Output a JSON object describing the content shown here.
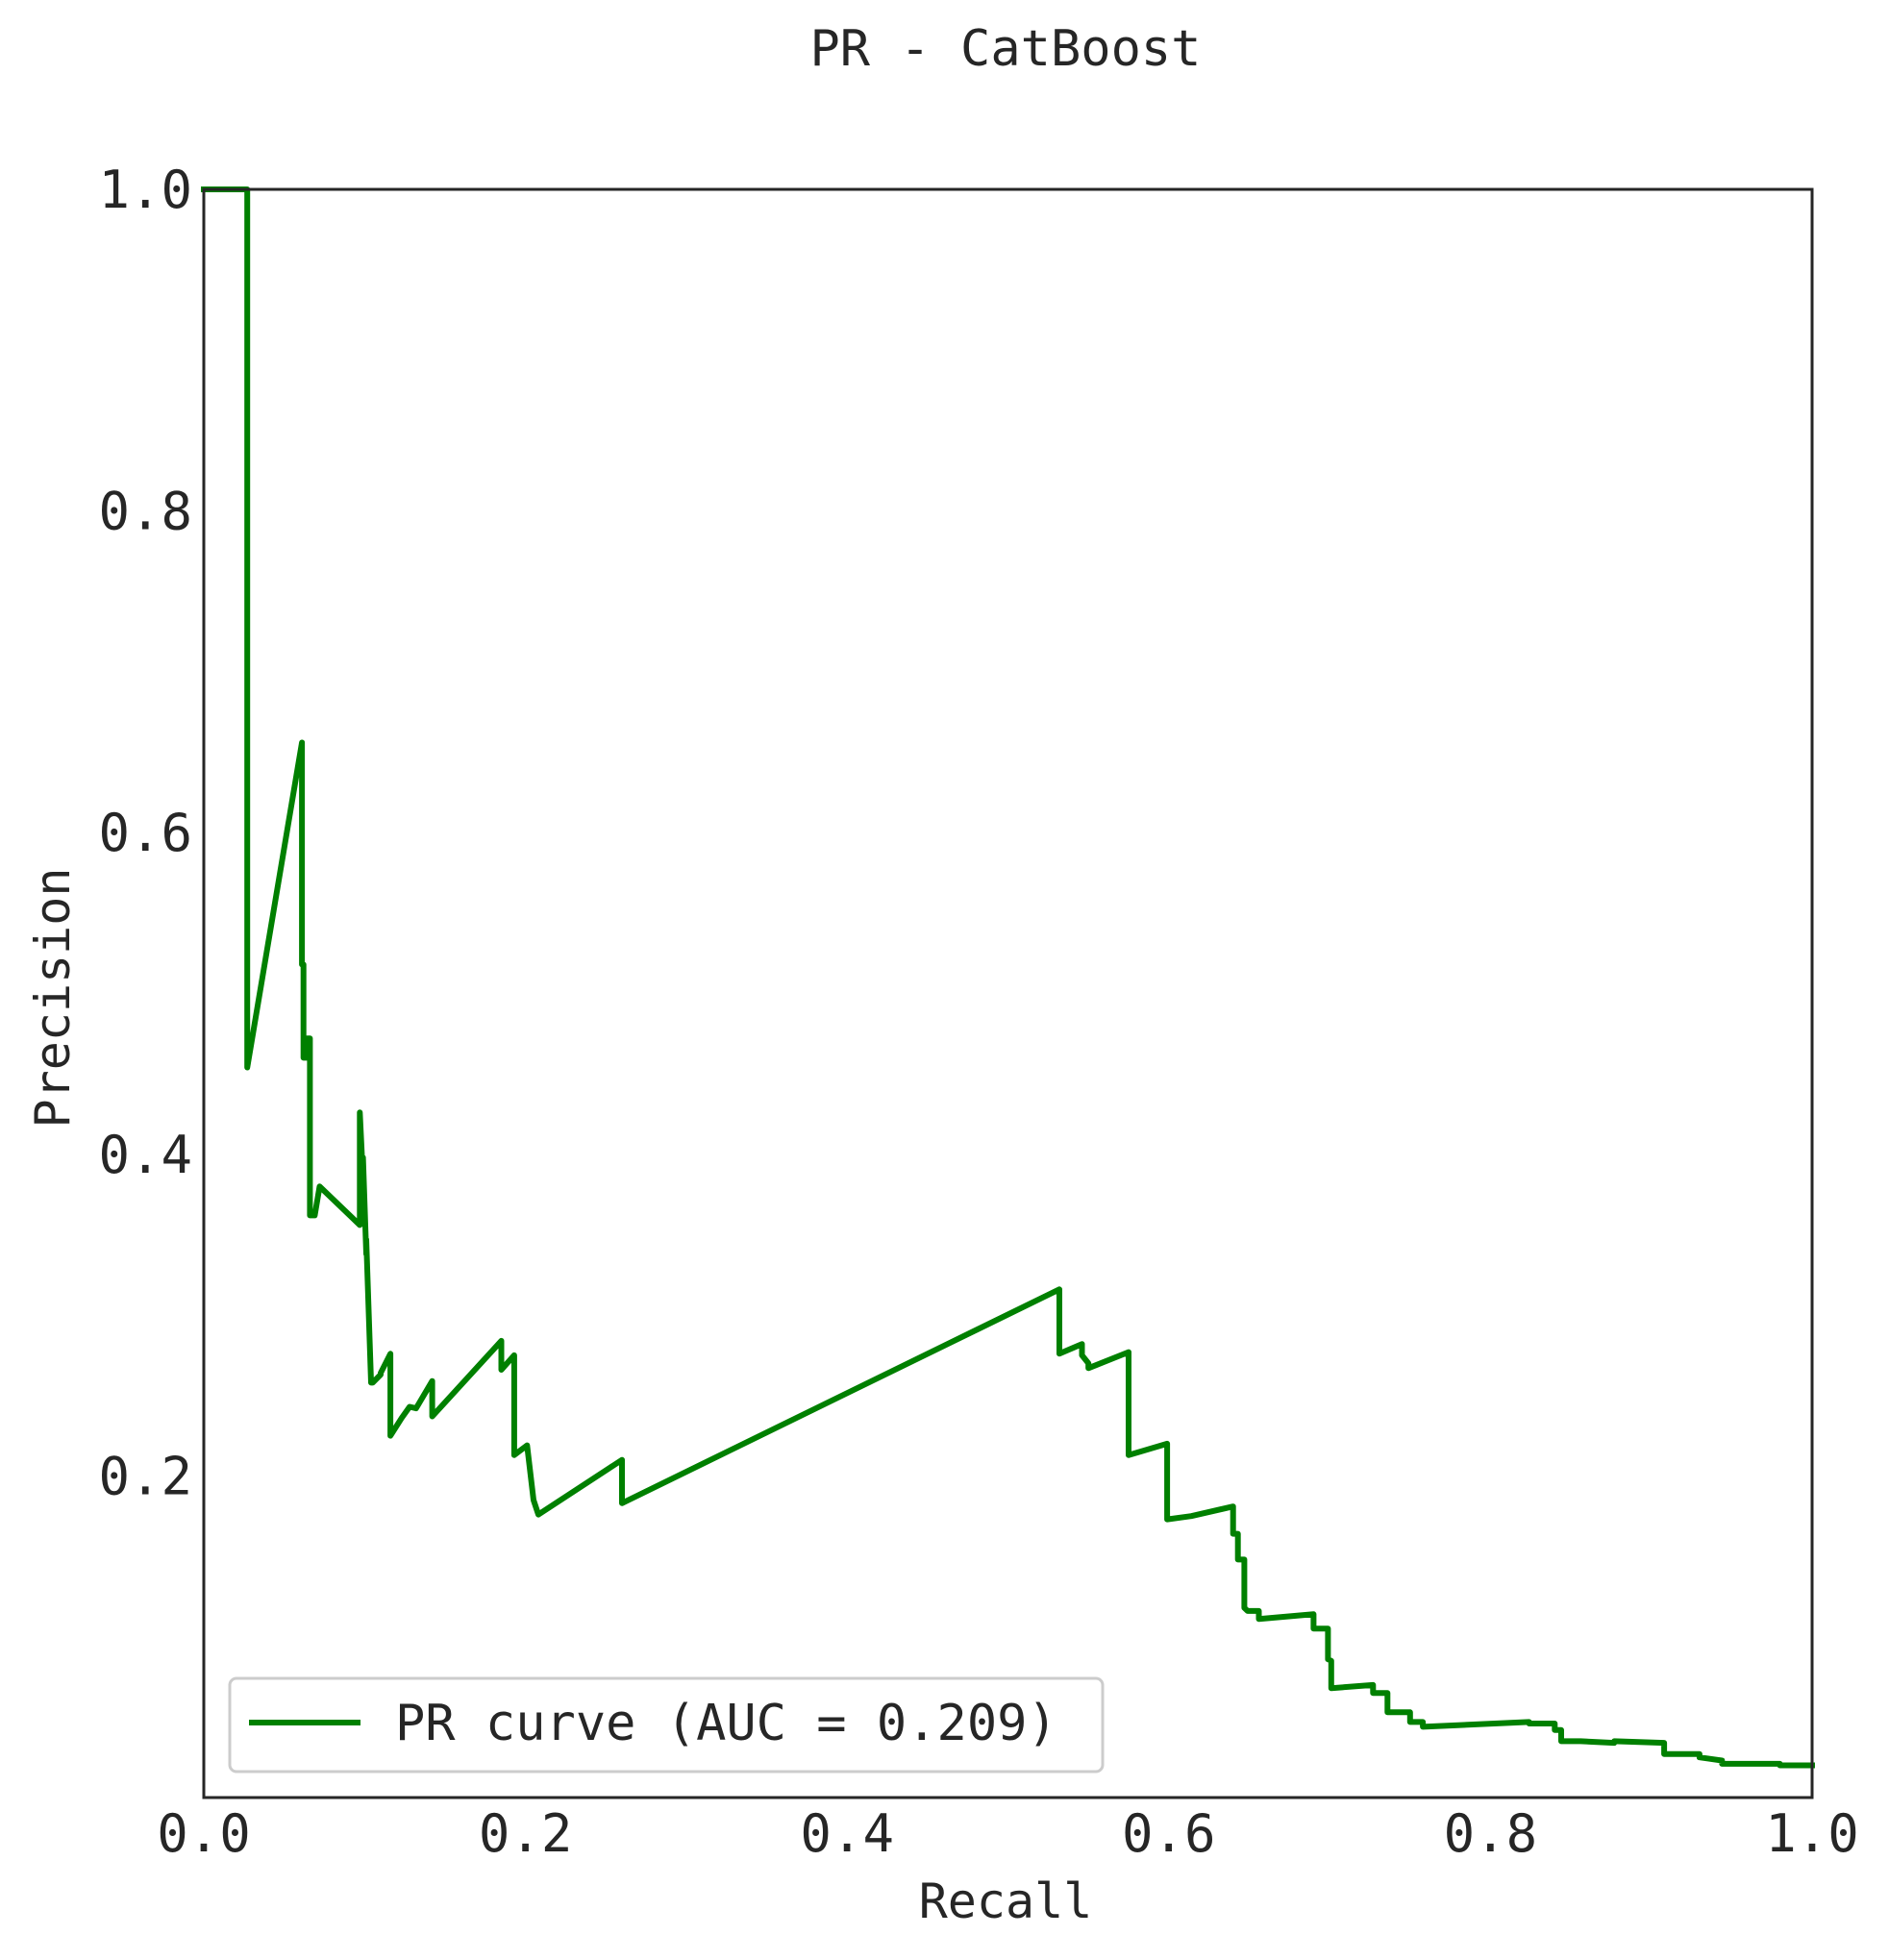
{
  "colors": {
    "background": "#ffffff",
    "axes_edge": "#262626",
    "text": "#262626",
    "curve": "#008000",
    "legend_edge": "#cccccc"
  },
  "chart_data": {
    "type": "line",
    "title": "PR - CatBoost",
    "xlabel": "Recall",
    "ylabel": "Precision",
    "xlim": [
      0.0,
      1.0
    ],
    "ylim": [
      0.0,
      1.0
    ],
    "xticks": [
      "0.0",
      "0.2",
      "0.4",
      "0.6",
      "0.8",
      "1.0"
    ],
    "yticks": [
      "0.2",
      "0.4",
      "0.6",
      "0.8",
      "1.0"
    ],
    "grid": false,
    "legend_position": "lower-left",
    "series": [
      {
        "name": "PR curve (AUC = 0.209)",
        "color": "#008000",
        "x": [
          0.0,
          0.027,
          0.027,
          0.027,
          0.061,
          0.061,
          0.062,
          0.062,
          0.064,
          0.064,
          0.066,
          0.066,
          0.069,
          0.072,
          0.097,
          0.097,
          0.099,
          0.099,
          0.101,
          0.101,
          0.104,
          0.105,
          0.11,
          0.11,
          0.116,
          0.116,
          0.123,
          0.128,
          0.132,
          0.142,
          0.142,
          0.185,
          0.185,
          0.193,
          0.193,
          0.201,
          0.201,
          0.205,
          0.205,
          0.208,
          0.26,
          0.26,
          0.532,
          0.532,
          0.546,
          0.546,
          0.55,
          0.55,
          0.575,
          0.575,
          0.599,
          0.599,
          0.614,
          0.64,
          0.64,
          0.643,
          0.643,
          0.647,
          0.647,
          0.649,
          0.656,
          0.656,
          0.69,
          0.69,
          0.699,
          0.699,
          0.701,
          0.701,
          0.727,
          0.727,
          0.736,
          0.736,
          0.75,
          0.75,
          0.758,
          0.758,
          0.824,
          0.824,
          0.84,
          0.84,
          0.844,
          0.844,
          0.856,
          0.877,
          0.877,
          0.908,
          0.908,
          0.93,
          0.93,
          0.944,
          0.944,
          0.98,
          0.98,
          1.0
        ],
        "y": [
          1.0,
          1.0,
          1.0,
          0.454,
          0.656,
          0.518,
          0.518,
          0.46,
          0.46,
          0.472,
          0.472,
          0.362,
          0.362,
          0.38,
          0.356,
          0.426,
          0.385,
          0.398,
          0.338,
          0.347,
          0.258,
          0.258,
          0.263,
          0.264,
          0.276,
          0.225,
          0.236,
          0.243,
          0.242,
          0.259,
          0.237,
          0.284,
          0.266,
          0.275,
          0.213,
          0.219,
          0.219,
          0.185,
          0.185,
          0.176,
          0.21,
          0.183,
          0.316,
          0.276,
          0.282,
          0.275,
          0.27,
          0.267,
          0.277,
          0.213,
          0.22,
          0.173,
          0.175,
          0.181,
          0.164,
          0.164,
          0.148,
          0.148,
          0.118,
          0.116,
          0.116,
          0.111,
          0.114,
          0.105,
          0.105,
          0.086,
          0.085,
          0.068,
          0.07,
          0.065,
          0.065,
          0.053,
          0.053,
          0.047,
          0.047,
          0.044,
          0.047,
          0.046,
          0.046,
          0.042,
          0.042,
          0.035,
          0.035,
          0.034,
          0.035,
          0.034,
          0.027,
          0.027,
          0.025,
          0.023,
          0.021,
          0.021,
          0.02,
          0.02
        ]
      }
    ]
  }
}
